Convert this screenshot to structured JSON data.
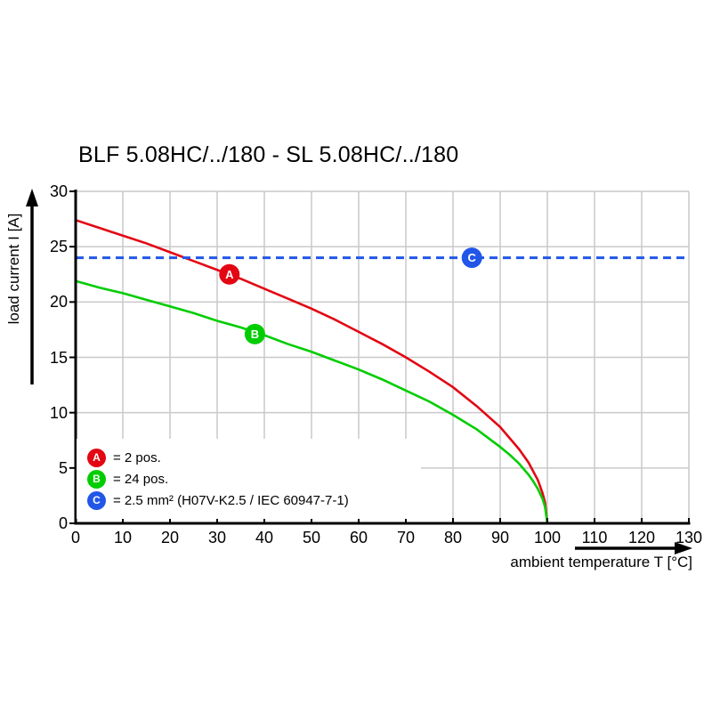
{
  "chart_data": {
    "type": "line",
    "title": "BLF 5.08HC/../180 - SL 5.08HC/../180",
    "xlabel": "ambient temperature T [°C]",
    "ylabel": "load current I [A]",
    "xlim": [
      0,
      130
    ],
    "ylim": [
      0,
      30
    ],
    "xticks": [
      0,
      10,
      20,
      30,
      40,
      50,
      60,
      70,
      80,
      90,
      100,
      110,
      120,
      130
    ],
    "yticks": [
      0,
      5,
      10,
      15,
      20,
      25,
      30
    ],
    "grid": true,
    "legend_position": "bottom-left-inside",
    "colors": {
      "red": "#e30613",
      "green": "#00cd00",
      "blue": "#2156e8",
      "grid": "#c9c9c9",
      "axis": "#000000",
      "marker_text": "#ffffff"
    },
    "series": [
      {
        "id": "A",
        "legend_label": "= 2 pos.",
        "color_key": "red",
        "style": "solid",
        "x": [
          0,
          5,
          10,
          15,
          20,
          25,
          30,
          35,
          40,
          45,
          50,
          55,
          60,
          65,
          70,
          75,
          80,
          85,
          90,
          92,
          94,
          96,
          97,
          98,
          99,
          99.5,
          100
        ],
        "y": [
          27.4,
          26.7,
          26.0,
          25.3,
          24.5,
          23.7,
          22.9,
          22.1,
          21.2,
          20.3,
          19.4,
          18.4,
          17.3,
          16.2,
          15.0,
          13.7,
          12.3,
          10.6,
          8.7,
          7.7,
          6.7,
          5.5,
          4.7,
          3.9,
          2.7,
          1.9,
          0
        ],
        "marker": {
          "x": 32.6,
          "y": 22.5
        }
      },
      {
        "id": "B",
        "legend_label": "= 24 pos.",
        "color_key": "green",
        "style": "solid",
        "x": [
          0,
          5,
          10,
          15,
          20,
          25,
          30,
          35,
          40,
          45,
          50,
          55,
          60,
          65,
          70,
          75,
          80,
          85,
          90,
          92,
          94,
          96,
          97,
          98,
          99,
          99.5,
          100
        ],
        "y": [
          21.9,
          21.3,
          20.8,
          20.2,
          19.6,
          19.0,
          18.3,
          17.7,
          17.0,
          16.2,
          15.5,
          14.7,
          13.9,
          13.0,
          12.0,
          11.0,
          9.8,
          8.5,
          6.9,
          6.2,
          5.4,
          4.4,
          3.8,
          3.1,
          2.2,
          1.5,
          0
        ],
        "marker": {
          "x": 38,
          "y": 17.1
        }
      },
      {
        "id": "C",
        "legend_label": "= 2.5 mm² (H07V-K2.5 / IEC 60947-7-1)",
        "color_key": "blue",
        "style": "dashed",
        "x": [
          0,
          130
        ],
        "y": [
          24,
          24
        ],
        "marker": {
          "x": 84,
          "y": 24
        }
      }
    ]
  }
}
